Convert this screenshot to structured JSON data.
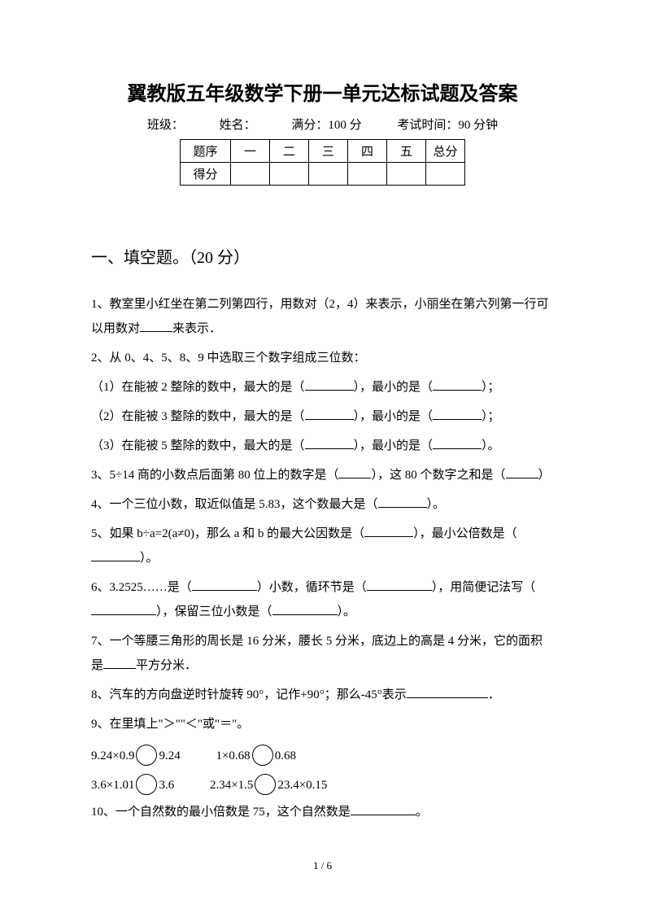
{
  "title": "翼教版五年级数学下册一单元达标试题及答案",
  "info": {
    "class_label": "班级：",
    "name_label": "姓名：",
    "full_score_label": "满分：100 分",
    "time_label": "考试时间：90 分钟"
  },
  "score_table": {
    "row1": [
      "题序",
      "一",
      "二",
      "三",
      "四",
      "五",
      "总分"
    ],
    "row2_label": "得分"
  },
  "section1": {
    "title": "一、填空题。（20 分）",
    "q1": {
      "p1": "1、教室里小红坐在第二列第四行，用数对（2，4）来表示，小丽坐在第六列第一行可以用数对",
      "p2": "来表示．"
    },
    "q2": {
      "head": "2、从 0、4、5、8、9 中选取三个数字组成三位数：",
      "s1a": "（1）在能被 2 整除的数中，最大的是（",
      "s1b": "），最小的是（",
      "s1c": "）；",
      "s2a": "（2）在能被 3 整除的数中，最大的是（",
      "s2b": "），最小的是（",
      "s2c": "）；",
      "s3a": "（3）在能被 5 整除的数中，最大的是（",
      "s3b": "），最小的是（",
      "s3c": "）。"
    },
    "q3": {
      "a": "3、5÷14 商的小数点后面第 80 位上的数字是（",
      "b": "），这 80 个数字之和是（",
      "c": "）"
    },
    "q4": {
      "a": "4、一个三位小数，取近似值是 5.83，这个数最大是（",
      "b": "）。"
    },
    "q5": {
      "a": "5、如果 b÷a=2(a≠0)，那么 a 和 b 的最大公因数是（",
      "b": "），最小公倍数是（",
      "c": "）。"
    },
    "q6": {
      "a": "6、3.2525……是（",
      "b": "）小数，循环节是（",
      "c": "），用简便记法写（",
      "d": "），保留三位小数是（",
      "e": "）。"
    },
    "q7": {
      "a": "7、一个等腰三角形的周长是 16 分米，腰长 5 分米，底边上的高是 4 分米，它的面积是",
      "b": "平方分米．"
    },
    "q8": {
      "a": "8、汽车的方向盘逆时针旋转 90°，记作+90°；那么-45°表示",
      "b": "．"
    },
    "q9": {
      "head": "9、在里填上\"＞\"\"＜\"或\"＝\"。",
      "r1a": "9.24×0.9",
      "r1b": "9.24",
      "r1c": "1×0.68",
      "r1d": "0.68",
      "r2a": "3.6×1.01",
      "r2b": "3.6",
      "r2c": "2.34×1.5",
      "r2d": "23.4×0.15"
    },
    "q10": {
      "a": "10、一个自然数的最小倍数是 75，这个自然数是",
      "b": "。"
    }
  },
  "footer": "1 / 6"
}
